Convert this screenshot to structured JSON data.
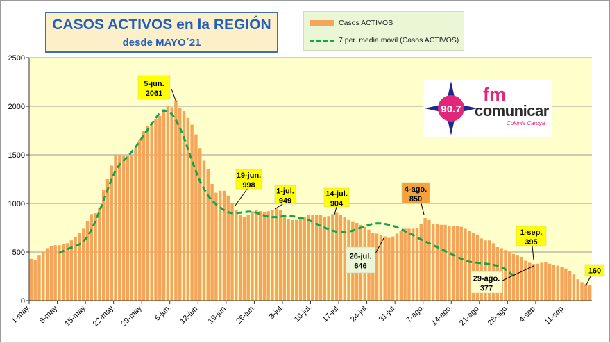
{
  "title": {
    "main": "CASOS ACTIVOS en la REGIÓN",
    "sub": "desde MAYO´21"
  },
  "legend": {
    "bars": "Casos ACTIVOS",
    "line": "7 per. media móvil (Casos ACTIVOS)"
  },
  "logo": {
    "freq": "90.7",
    "fm": "fm",
    "name": "comunicar",
    "city": "Colonia Caroya"
  },
  "colors": {
    "bar": "#f4a55a",
    "line": "#10a64a",
    "plot_bg": "#ffffcc",
    "title_text": "#1f5fbf"
  },
  "chart_data": {
    "type": "bar",
    "title": "CASOS ACTIVOS en la REGIÓN desde MAYO´21",
    "xlabel": "",
    "ylabel": "",
    "ylim": [
      0,
      2500
    ],
    "yticks": [
      0,
      500,
      1000,
      1500,
      2000,
      2500
    ],
    "grid": true,
    "xtick_labels": [
      "1-may.",
      "8-may.",
      "15-may.",
      "22-may.",
      "29-may.",
      "5-jun.",
      "12-jun.",
      "19-jun.",
      "26-jun.",
      "3-jul.",
      "10-jul.",
      "17-jul.",
      "24-jul.",
      "31-jul.",
      "7-ago.",
      "14-ago.",
      "21-ago.",
      "28-ago.",
      "4-sep.",
      "11-sep."
    ],
    "series": [
      {
        "name": "Casos ACTIVOS",
        "type": "bar",
        "values": [
          430,
          420,
          470,
          500,
          540,
          560,
          570,
          570,
          580,
          590,
          620,
          650,
          700,
          740,
          820,
          890,
          900,
          960,
          1140,
          1250,
          1390,
          1500,
          1500,
          1490,
          1490,
          1500,
          1570,
          1650,
          1750,
          1800,
          1820,
          1870,
          1900,
          1970,
          2000,
          1990,
          2061,
          1980,
          1950,
          1880,
          1810,
          1710,
          1570,
          1440,
          1350,
          1200,
          1110,
          1130,
          1130,
          1080,
          998,
          930,
          880,
          860,
          880,
          920,
          930,
          920,
          910,
          920,
          930,
          949,
          930,
          880,
          840,
          830,
          830,
          840,
          860,
          880,
          880,
          880,
          880,
          860,
          870,
          890,
          904,
          880,
          860,
          830,
          810,
          800,
          780,
          760,
          730,
          700,
          690,
          680,
          660,
          646,
          660,
          690,
          720,
          740,
          740,
          740,
          750,
          790,
          850,
          830,
          790,
          790,
          780,
          780,
          770,
          770,
          770,
          760,
          740,
          720,
          700,
          680,
          640,
          620,
          620,
          590,
          550,
          540,
          520,
          500,
          480,
          470,
          450,
          410,
          390,
          377,
          380,
          390,
          395,
          380,
          370,
          360,
          350,
          330,
          300,
          270,
          220,
          190,
          170,
          160
        ]
      },
      {
        "name": "7 per. media móvil (Casos ACTIVOS)",
        "type": "line",
        "style": "dashed",
        "x_start": 7,
        "values": [
          490,
          510,
          530,
          545,
          560,
          580,
          610,
          660,
          730,
          820,
          920,
          1030,
          1140,
          1250,
          1340,
          1400,
          1440,
          1480,
          1530,
          1580,
          1640,
          1700,
          1760,
          1820,
          1880,
          1930,
          1955,
          1950,
          1920,
          1860,
          1780,
          1680,
          1560,
          1440,
          1330,
          1230,
          1150,
          1080,
          1030,
          990,
          960,
          930,
          910,
          900,
          900,
          905,
          910,
          915,
          915,
          905,
          890,
          875,
          865,
          860,
          860,
          865,
          870,
          875,
          870,
          860,
          850,
          840,
          830,
          810,
          790,
          770,
          750,
          735,
          720,
          710,
          705,
          705,
          710,
          720,
          735,
          750,
          765,
          780,
          790,
          795,
          795,
          790,
          780,
          770,
          755,
          735,
          715,
          695,
          675,
          650,
          630,
          610,
          590,
          570,
          550,
          530,
          510,
          490,
          470,
          450,
          430,
          415,
          400,
          395,
          390,
          385,
          380,
          375,
          368,
          360,
          345,
          320,
          290,
          255
        ]
      }
    ],
    "annotations": [
      {
        "label": "5-jun.",
        "value": "2061",
        "box_color": "#ffff00"
      },
      {
        "label": "19-jun.",
        "value": "998",
        "box_color": "#ffff00"
      },
      {
        "label": "1-jul.",
        "value": "949",
        "box_color": "#ffff00"
      },
      {
        "label": "14-jul.",
        "value": "904",
        "box_color": "#ffff00"
      },
      {
        "label": "4-ago.",
        "value": "850",
        "box_color": "#f6a23c"
      },
      {
        "label": "26-jul.",
        "value": "646",
        "box_color": "#eaf6d5"
      },
      {
        "label": "29-ago.",
        "value": "377",
        "box_color": "#ffffcc"
      },
      {
        "label": "1-sep.",
        "value": "395",
        "box_color": "#ffff00"
      },
      {
        "value": "160",
        "box_color": "#ffff00"
      }
    ]
  }
}
